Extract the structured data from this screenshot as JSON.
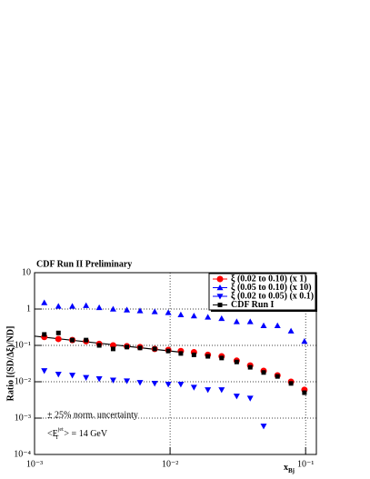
{
  "chart_data": {
    "type": "scatter",
    "title": "CDF Run II Preliminary",
    "ylabel": "Ratio [(SD/Δξ)/ND]",
    "xlabel": {
      "main": "x",
      "sub": "Bj"
    },
    "annotations": [
      "± 25% norm. uncertainty",
      {
        "pre": "<E",
        "sup": "jet",
        "sub": "T",
        "post": "> = 14 GeV"
      }
    ],
    "xlog": true,
    "ylog": true,
    "grid": true,
    "legend": "upper right",
    "xlim": [
      0.001,
      0.12
    ],
    "ylim": [
      0.0001,
      10
    ],
    "xticks": [
      {
        "value": 0.001,
        "label": "10⁻³"
      },
      {
        "value": 0.01,
        "label": "10⁻²"
      },
      {
        "value": 0.1,
        "label": "10⁻¹"
      }
    ],
    "yticks": [
      {
        "value": 0.0001,
        "label": "10⁻⁴"
      },
      {
        "value": 0.001,
        "label": "10⁻³"
      },
      {
        "value": 0.01,
        "label": "10⁻²"
      },
      {
        "value": 0.1,
        "label": "10⁻¹"
      },
      1,
      10
    ],
    "series": [
      {
        "name": "ξ (0.02 to 0.10) (x 1)",
        "color": "#ff0000",
        "marker": "circle",
        "x": [
          0.00118,
          0.0015,
          0.0019,
          0.0024,
          0.003,
          0.0038,
          0.0048,
          0.006,
          0.0077,
          0.0097,
          0.012,
          0.015,
          0.019,
          0.024,
          0.031,
          0.039,
          0.049,
          0.062,
          0.078,
          0.098
        ],
        "values": [
          0.17,
          0.15,
          0.14,
          0.13,
          0.11,
          0.1,
          0.095,
          0.09,
          0.08,
          0.075,
          0.07,
          0.065,
          0.055,
          0.05,
          0.038,
          0.028,
          0.02,
          0.015,
          0.01,
          0.006
        ]
      },
      {
        "name": "ξ (0.05 to 0.10) (x 10)",
        "color": "#0000ff",
        "marker": "triangle-up",
        "x": [
          0.00118,
          0.0015,
          0.0019,
          0.0024,
          0.003,
          0.0038,
          0.0048,
          0.006,
          0.0077,
          0.0097,
          0.012,
          0.015,
          0.019,
          0.024,
          0.031,
          0.039,
          0.049,
          0.062,
          0.078,
          0.098
        ],
        "values": [
          1.5,
          1.2,
          1.2,
          1.25,
          1.1,
          1.0,
          0.95,
          0.9,
          0.85,
          0.8,
          0.7,
          0.65,
          0.6,
          0.55,
          0.45,
          0.45,
          0.35,
          0.35,
          0.25,
          0.13
        ]
      },
      {
        "name": "ξ (0.02 to 0.05) (x 0.1)",
        "color": "#0000ff",
        "marker": "triangle-down",
        "x": [
          0.00118,
          0.0015,
          0.0019,
          0.0024,
          0.003,
          0.0038,
          0.0048,
          0.006,
          0.0077,
          0.0097,
          0.012,
          0.015,
          0.019,
          0.024,
          0.031,
          0.039,
          0.049
        ],
        "values": [
          0.02,
          0.016,
          0.015,
          0.013,
          0.012,
          0.011,
          0.0105,
          0.0095,
          0.009,
          0.0085,
          0.0085,
          0.007,
          0.006,
          0.006,
          0.004,
          0.0035,
          0.0006
        ]
      },
      {
        "name": "CDF Run I",
        "color": "#000000",
        "marker": "square",
        "x": [
          0.00118,
          0.0015,
          0.0019,
          0.0024,
          0.003,
          0.0038,
          0.0048,
          0.006,
          0.0077,
          0.0097,
          0.012,
          0.015,
          0.019,
          0.024,
          0.031,
          0.039,
          0.049,
          0.062,
          0.078,
          0.098
        ],
        "values": [
          0.2,
          0.22,
          0.14,
          0.14,
          0.1,
          0.08,
          0.09,
          0.085,
          0.08,
          0.07,
          0.06,
          0.055,
          0.05,
          0.045,
          0.035,
          0.025,
          0.018,
          0.014,
          0.009,
          0.005
        ]
      }
    ],
    "fit": {
      "color": "#000000",
      "x": [
        0.001,
        0.012
      ],
      "values": [
        0.18,
        0.065
      ]
    }
  }
}
